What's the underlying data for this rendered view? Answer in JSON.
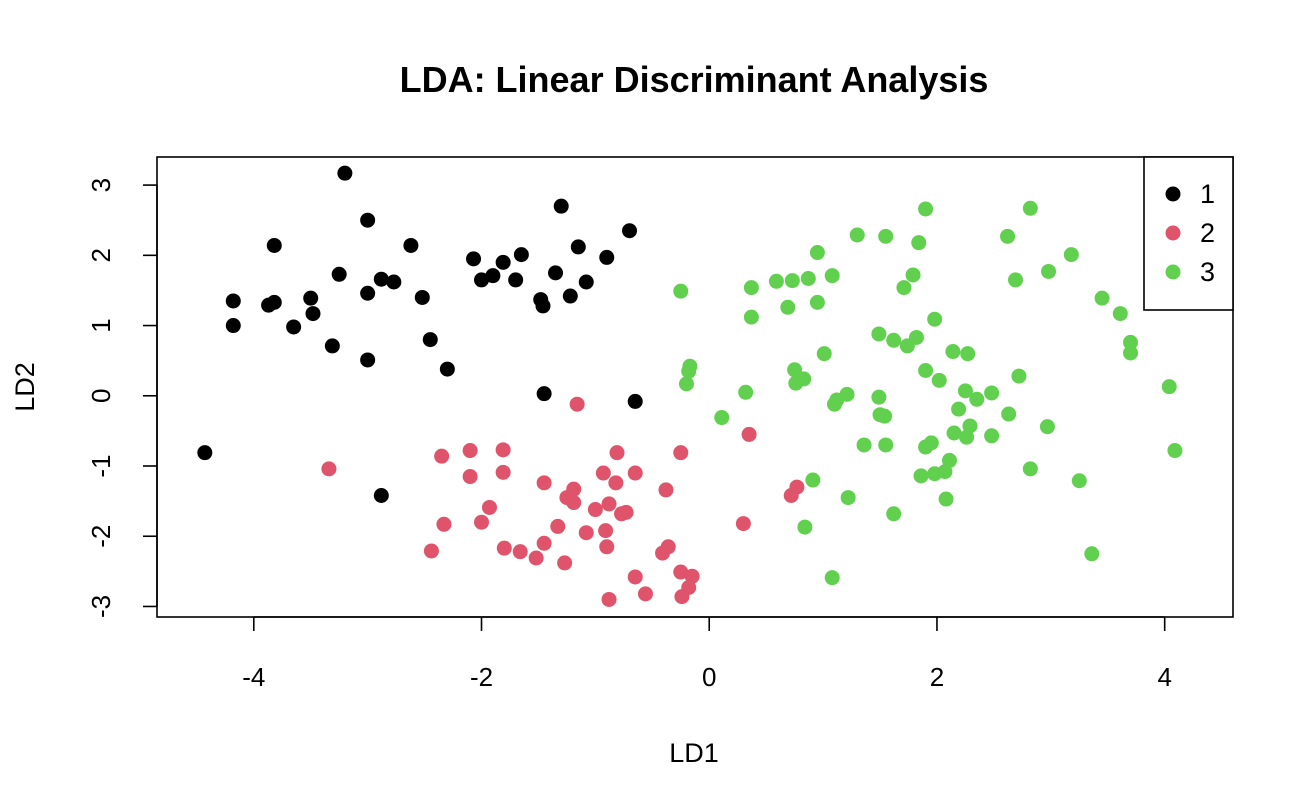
{
  "chart_data": {
    "type": "scatter",
    "title": "LDA: Linear Discriminant Analysis",
    "xlabel": "LD1",
    "ylabel": "LD2",
    "xlim": [
      -4.85,
      4.6
    ],
    "ylim": [
      -3.15,
      3.4
    ],
    "xticks": [
      -4,
      -2,
      0,
      2,
      4
    ],
    "xtick_labels": [
      "-4",
      "-2",
      "0",
      "2",
      "4"
    ],
    "yticks": [
      -3,
      -2,
      -1,
      0,
      1,
      2,
      3
    ],
    "ytick_labels": [
      "-3",
      "-2",
      "-1",
      "0",
      "1",
      "2",
      "3"
    ],
    "grid": false,
    "legend_position": "top-right",
    "series": [
      {
        "name": "1",
        "color": "#000000",
        "points": [
          [
            -3.2,
            3.17
          ],
          [
            -3.0,
            2.5
          ],
          [
            -3.82,
            2.14
          ],
          [
            -2.62,
            2.14
          ],
          [
            -1.3,
            2.7
          ],
          [
            -0.7,
            2.35
          ],
          [
            -1.15,
            2.12
          ],
          [
            -0.9,
            1.97
          ],
          [
            -1.65,
            2.01
          ],
          [
            -2.07,
            1.95
          ],
          [
            -1.81,
            1.9
          ],
          [
            -1.9,
            1.71
          ],
          [
            -2.0,
            1.65
          ],
          [
            -1.7,
            1.65
          ],
          [
            -1.35,
            1.75
          ],
          [
            -1.08,
            1.62
          ],
          [
            -1.22,
            1.42
          ],
          [
            -1.48,
            1.37
          ],
          [
            -1.46,
            1.28
          ],
          [
            -3.25,
            1.73
          ],
          [
            -2.88,
            1.66
          ],
          [
            -2.77,
            1.62
          ],
          [
            -3.0,
            1.46
          ],
          [
            -2.52,
            1.4
          ],
          [
            -3.5,
            1.39
          ],
          [
            -4.18,
            1.35
          ],
          [
            -3.82,
            1.33
          ],
          [
            -3.87,
            1.29
          ],
          [
            -3.48,
            1.17
          ],
          [
            -4.18,
            1.0
          ],
          [
            -3.65,
            0.98
          ],
          [
            -2.45,
            0.8
          ],
          [
            -3.31,
            0.71
          ],
          [
            -3.0,
            0.51
          ],
          [
            -2.3,
            0.38
          ],
          [
            -1.45,
            0.03
          ],
          [
            -0.65,
            -0.08
          ],
          [
            -4.43,
            -0.81
          ],
          [
            -2.88,
            -1.42
          ]
        ]
      },
      {
        "name": "2",
        "color": "#DF536B",
        "points": [
          [
            -3.34,
            -1.04
          ],
          [
            -1.16,
            -0.12
          ],
          [
            -2.35,
            -0.86
          ],
          [
            -2.1,
            -0.78
          ],
          [
            -1.81,
            -0.77
          ],
          [
            -0.81,
            -0.81
          ],
          [
            -0.25,
            -0.81
          ],
          [
            0.35,
            -0.55
          ],
          [
            -2.1,
            -1.15
          ],
          [
            -1.81,
            -1.09
          ],
          [
            -0.93,
            -1.1
          ],
          [
            -0.65,
            -1.1
          ],
          [
            -1.45,
            -1.24
          ],
          [
            -0.82,
            -1.24
          ],
          [
            -1.19,
            -1.33
          ],
          [
            -0.38,
            -1.34
          ],
          [
            -1.25,
            -1.45
          ],
          [
            -1.19,
            -1.52
          ],
          [
            -0.88,
            -1.54
          ],
          [
            -1.93,
            -1.59
          ],
          [
            -1.0,
            -1.62
          ],
          [
            -0.73,
            -1.66
          ],
          [
            -0.77,
            -1.68
          ],
          [
            -2.33,
            -1.83
          ],
          [
            -2.0,
            -1.8
          ],
          [
            -1.33,
            -1.86
          ],
          [
            -0.91,
            -1.92
          ],
          [
            -1.08,
            -1.95
          ],
          [
            0.3,
            -1.82
          ],
          [
            -1.45,
            -2.1
          ],
          [
            -1.8,
            -2.17
          ],
          [
            -1.66,
            -2.22
          ],
          [
            -0.9,
            -2.15
          ],
          [
            -0.36,
            -2.15
          ],
          [
            -0.41,
            -2.24
          ],
          [
            -2.44,
            -2.21
          ],
          [
            -1.52,
            -2.31
          ],
          [
            -1.27,
            -2.38
          ],
          [
            -0.65,
            -2.58
          ],
          [
            -0.25,
            -2.51
          ],
          [
            -0.15,
            -2.57
          ],
          [
            -0.18,
            -2.73
          ],
          [
            -0.24,
            -2.86
          ],
          [
            -0.56,
            -2.82
          ],
          [
            -0.88,
            -2.9
          ],
          [
            0.77,
            -1.3
          ],
          [
            0.72,
            -1.42
          ]
        ]
      },
      {
        "name": "3",
        "color": "#61D04F",
        "points": [
          [
            1.9,
            2.66
          ],
          [
            2.82,
            2.67
          ],
          [
            1.3,
            2.29
          ],
          [
            1.55,
            2.27
          ],
          [
            1.84,
            2.18
          ],
          [
            2.62,
            2.27
          ],
          [
            0.95,
            2.04
          ],
          [
            3.18,
            2.01
          ],
          [
            1.79,
            1.72
          ],
          [
            1.08,
            1.71
          ],
          [
            0.59,
            1.63
          ],
          [
            0.73,
            1.64
          ],
          [
            0.87,
            1.67
          ],
          [
            2.69,
            1.65
          ],
          [
            2.98,
            1.77
          ],
          [
            -0.25,
            1.49
          ],
          [
            0.37,
            1.54
          ],
          [
            1.71,
            1.54
          ],
          [
            3.45,
            1.39
          ],
          [
            0.95,
            1.33
          ],
          [
            0.69,
            1.26
          ],
          [
            3.61,
            1.17
          ],
          [
            0.37,
            1.12
          ],
          [
            1.98,
            1.09
          ],
          [
            1.49,
            0.88
          ],
          [
            1.82,
            0.83
          ],
          [
            1.62,
            0.79
          ],
          [
            3.7,
            0.76
          ],
          [
            1.74,
            0.71
          ],
          [
            2.14,
            0.63
          ],
          [
            2.27,
            0.6
          ],
          [
            3.7,
            0.61
          ],
          [
            1.01,
            0.6
          ],
          [
            0.75,
            0.37
          ],
          [
            -0.17,
            0.42
          ],
          [
            -0.18,
            0.35
          ],
          [
            1.9,
            0.36
          ],
          [
            0.83,
            0.24
          ],
          [
            0.76,
            0.18
          ],
          [
            2.02,
            0.22
          ],
          [
            -0.2,
            0.17
          ],
          [
            2.72,
            0.28
          ],
          [
            4.04,
            0.13
          ],
          [
            0.32,
            0.05
          ],
          [
            1.21,
            0.02
          ],
          [
            1.49,
            -0.02
          ],
          [
            2.25,
            0.07
          ],
          [
            2.48,
            0.04
          ],
          [
            1.12,
            -0.06
          ],
          [
            2.35,
            -0.05
          ],
          [
            1.1,
            -0.12
          ],
          [
            2.19,
            -0.19
          ],
          [
            1.5,
            -0.27
          ],
          [
            1.54,
            -0.29
          ],
          [
            2.63,
            -0.26
          ],
          [
            0.11,
            -0.31
          ],
          [
            2.29,
            -0.43
          ],
          [
            2.97,
            -0.44
          ],
          [
            2.15,
            -0.53
          ],
          [
            2.26,
            -0.59
          ],
          [
            2.48,
            -0.57
          ],
          [
            1.36,
            -0.7
          ],
          [
            1.55,
            -0.7
          ],
          [
            1.95,
            -0.67
          ],
          [
            1.9,
            -0.73
          ],
          [
            4.09,
            -0.78
          ],
          [
            2.11,
            -0.92
          ],
          [
            2.07,
            -1.08
          ],
          [
            1.98,
            -1.11
          ],
          [
            1.86,
            -1.14
          ],
          [
            2.82,
            -1.04
          ],
          [
            0.91,
            -1.2
          ],
          [
            3.25,
            -1.21
          ],
          [
            1.22,
            -1.45
          ],
          [
            2.08,
            -1.47
          ],
          [
            1.62,
            -1.68
          ],
          [
            0.84,
            -1.87
          ],
          [
            3.36,
            -2.25
          ],
          [
            1.08,
            -2.59
          ]
        ]
      }
    ]
  }
}
